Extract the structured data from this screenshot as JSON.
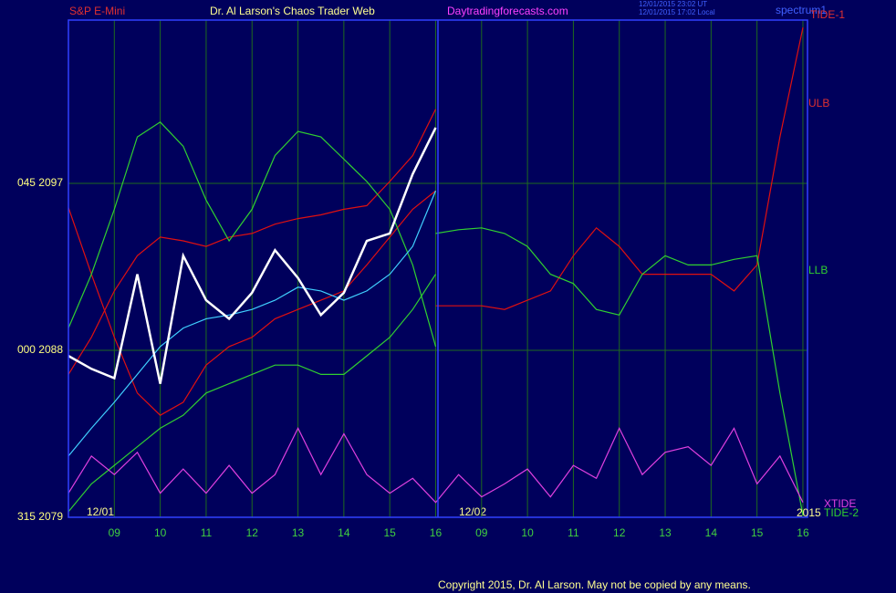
{
  "chart_data": {
    "type": "line",
    "symbol": "S&P E-Mini",
    "title": "Dr. Al Larson's Chaos Trader Web",
    "website": "Daytradingforecasts.com",
    "timestamps": [
      "12/01/2015 23:02 UT",
      "12/01/2015 17:02 Local"
    ],
    "watermark": "spectrum1",
    "copyright": "Copyright 2015, Dr. Al Larson. May not be copied by any means.",
    "date_labels": [
      "12/01",
      "12/02"
    ],
    "annotations": [
      "TIDE-1",
      "ULB",
      "LLB",
      "XTIDE",
      "TIDE-2",
      "2015"
    ],
    "xlim": [
      8,
      24.1
    ],
    "xticks": [
      {
        "value": 9,
        "label": "09"
      },
      10,
      11,
      12,
      13,
      14,
      15,
      16,
      {
        "value": 17,
        "label": "09"
      },
      {
        "value": 18,
        "label": "10"
      },
      {
        "value": 19,
        "label": "11"
      },
      {
        "value": 20,
        "label": "12"
      },
      {
        "value": 21,
        "label": "13"
      },
      {
        "value": 22,
        "label": "14"
      },
      {
        "value": 23,
        "label": "15"
      },
      {
        "value": 24,
        "label": "16"
      }
    ],
    "ylim": [
      2079,
      2105.8
    ],
    "yticks": [
      {
        "value": 2079,
        "label": "315  2079"
      },
      {
        "value": 2088,
        "label": "000  2088"
      },
      {
        "value": 2097,
        "label": "045  2097"
      }
    ],
    "grid": true,
    "x": [
      8,
      8.5,
      9,
      9.5,
      10,
      10.5,
      11,
      11.5,
      12,
      12.5,
      13,
      13.5,
      14,
      14.5,
      15,
      15.5,
      16,
      16.5,
      17,
      17.5,
      18,
      18.5,
      19,
      19.5,
      20,
      20.5,
      21,
      21.5,
      22,
      22.5,
      23,
      23.5,
      24
    ],
    "series": [
      {
        "color": "#e01010",
        "values": [
          2095.7,
          2092.1,
          2088.7,
          2085.7,
          2084.5,
          2085.2,
          2087.2,
          2088.2,
          2088.7,
          2089.7,
          2090.2,
          2090.7,
          2091.2,
          2092.6,
          2094.1,
          2095.6,
          2096.6,
          null,
          null,
          null,
          null,
          null,
          null,
          null,
          null,
          null,
          null,
          null,
          null,
          null,
          null,
          null,
          null
        ]
      },
      {
        "color": "#e01010",
        "values": [
          2086.7,
          2088.7,
          2091.2,
          2093.1,
          2094.1,
          2093.9,
          2093.6,
          2094.1,
          2094.3,
          2094.8,
          2095.1,
          2095.3,
          2095.6,
          2095.8,
          2097.1,
          2098.5,
          2101.0,
          null,
          null,
          null,
          null,
          null,
          null,
          null,
          null,
          null,
          null,
          null,
          null,
          null,
          null,
          null,
          null
        ]
      },
      {
        "color": "#30d030",
        "values": [
          2089.2,
          2092.1,
          2095.6,
          2099.5,
          2100.3,
          2099.0,
          2096.1,
          2093.9,
          2095.6,
          2098.5,
          2099.8,
          2099.5,
          2098.3,
          2097.1,
          2095.6,
          2092.6,
          2088.2,
          null,
          null,
          null,
          null,
          null,
          null,
          null,
          null,
          null,
          null,
          null,
          null,
          null,
          null,
          null,
          null
        ]
      },
      {
        "color": "#30d030",
        "values": [
          2079.3,
          2080.8,
          2081.8,
          2082.8,
          2083.8,
          2084.5,
          2085.7,
          2086.2,
          2086.7,
          2087.2,
          2087.2,
          2086.7,
          2086.7,
          2087.7,
          2088.7,
          2090.2,
          2092.1,
          null,
          null,
          null,
          null,
          null,
          null,
          null,
          null,
          null,
          null,
          null,
          null,
          null,
          null,
          null,
          null
        ]
      },
      {
        "color": "#40d0ff",
        "values": [
          2082.3,
          2083.8,
          2085.2,
          2086.7,
          2088.2,
          2089.2,
          2089.7,
          2089.9,
          2090.2,
          2090.7,
          2091.4,
          2091.2,
          2090.7,
          2091.2,
          2092.1,
          2093.6,
          2096.6,
          null,
          null,
          null,
          null,
          null,
          null,
          null,
          null,
          null,
          null,
          null,
          null,
          null,
          null,
          null,
          null
        ]
      },
      {
        "color": "#ffffff",
        "values": [
          2087.7,
          2087.0,
          2086.5,
          2092.1,
          2086.2,
          2093.1,
          2090.7,
          2089.7,
          2091.1,
          2093.4,
          2091.9,
          2089.9,
          2091.1,
          2093.9,
          2094.3,
          2097.5,
          2100.0,
          null,
          null,
          null,
          null,
          null,
          null,
          null,
          null,
          null,
          null,
          null,
          null,
          null,
          null,
          null,
          null
        ]
      },
      {
        "color": "#e01010",
        "values": [
          null,
          null,
          null,
          null,
          null,
          null,
          null,
          null,
          null,
          null,
          null,
          null,
          null,
          null,
          null,
          null,
          2090.4,
          2090.4,
          2090.4,
          2090.2,
          2090.7,
          2091.2,
          2093.1,
          2094.6,
          2093.6,
          2092.1,
          2092.1,
          2092.1,
          2092.1,
          2091.2,
          2092.6,
          2099.5,
          2105.4
        ]
      },
      {
        "color": "#30d030",
        "values": [
          null,
          null,
          null,
          null,
          null,
          null,
          null,
          null,
          null,
          null,
          null,
          null,
          null,
          null,
          null,
          null,
          2094.3,
          2094.5,
          2094.6,
          2094.3,
          2093.6,
          2092.1,
          2091.6,
          2090.2,
          2089.9,
          2092.1,
          2093.1,
          2092.6,
          2092.6,
          2092.9,
          2093.1,
          2085.7,
          2079.1
        ]
      },
      {
        "color": "#e040e0",
        "values": [
          2080.3,
          2082.3,
          2081.3,
          2082.5,
          2080.3,
          2081.6,
          2080.3,
          2081.8,
          2080.3,
          2081.3,
          2083.8,
          2081.3,
          2083.5,
          2081.3,
          2080.3,
          2081.1,
          2079.8,
          2081.3,
          2080.1,
          2080.8,
          2081.6,
          2080.1,
          2081.8,
          2081.1,
          2083.8,
          2081.3,
          2082.5,
          2082.8,
          2081.8,
          2083.8,
          2080.8,
          2082.3,
          2079.8
        ]
      }
    ]
  }
}
